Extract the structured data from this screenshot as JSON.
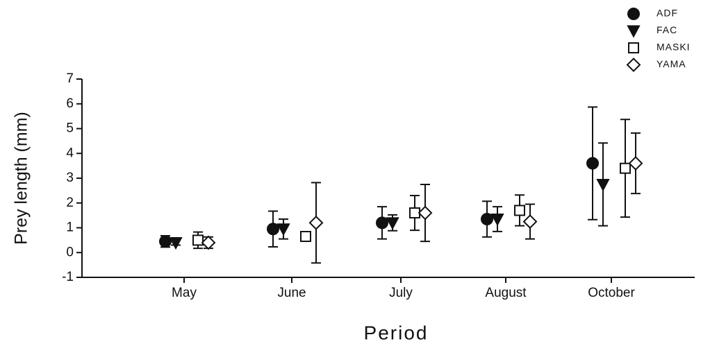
{
  "chart_data": {
    "type": "errorbar",
    "categories": [
      "May",
      "June",
      "July",
      "August",
      "October"
    ],
    "x_label": "Period",
    "y_label": "Prey length (mm)",
    "ylim": [
      -1,
      7
    ],
    "yticks": [
      -1,
      0,
      1,
      2,
      3,
      4,
      5,
      6,
      7
    ],
    "legend": "top-right",
    "series": [
      {
        "name": "ADF",
        "marker": "circle",
        "color": "#111111",
        "values": [
          0.45,
          0.95,
          1.2,
          1.35,
          3.6
        ],
        "errors": [
          0.23,
          0.72,
          0.65,
          0.72,
          2.27
        ]
      },
      {
        "name": "FAC",
        "marker": "triangle-down",
        "color": "#111111",
        "values": [
          0.4,
          0.95,
          1.2,
          1.35,
          2.75
        ],
        "errors": [
          0.1,
          0.4,
          0.32,
          0.5,
          1.67
        ]
      },
      {
        "name": "MASKI",
        "marker": "square-open",
        "color": "#111111",
        "values": [
          0.5,
          0.65,
          1.6,
          1.7,
          3.4
        ],
        "errors": [
          0.33,
          0.17,
          0.7,
          0.62,
          1.97
        ]
      },
      {
        "name": "YAMA",
        "marker": "diamond-open",
        "color": "#111111",
        "values": [
          0.4,
          1.2,
          1.6,
          1.25,
          3.6
        ],
        "errors": [
          0.23,
          1.62,
          1.15,
          0.7,
          1.22
        ]
      }
    ]
  }
}
